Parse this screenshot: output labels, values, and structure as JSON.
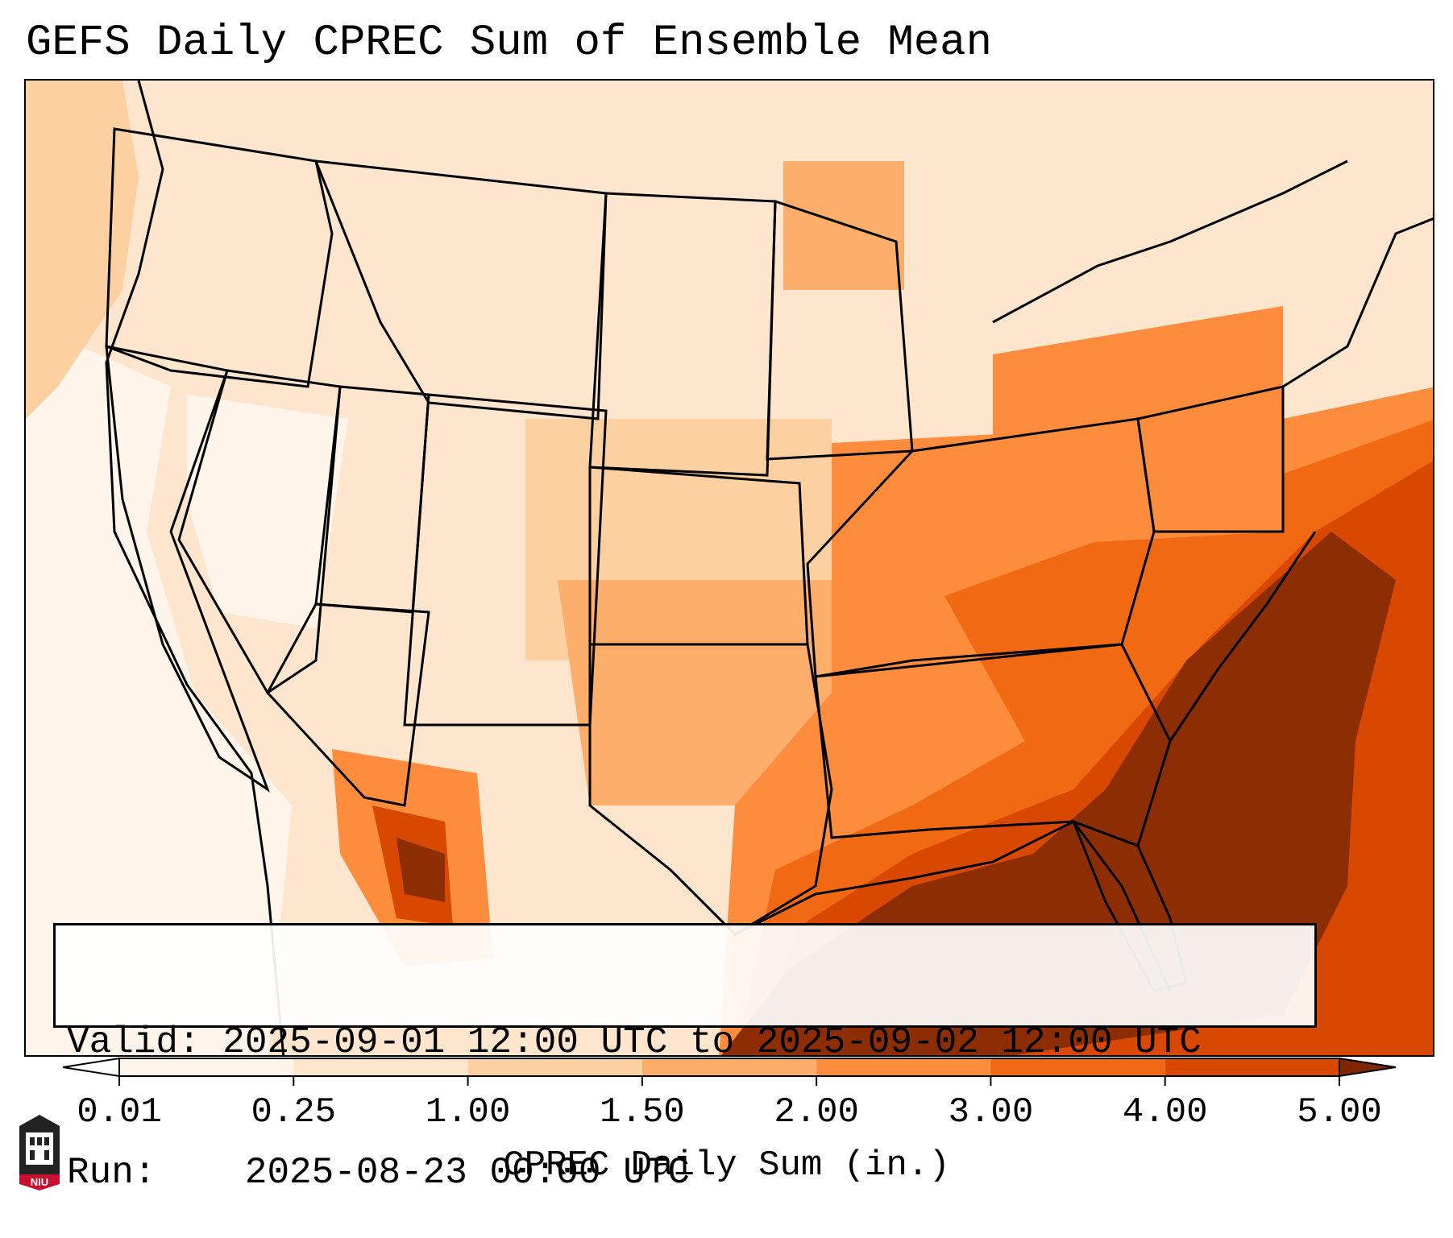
{
  "title": "GEFS Daily CPREC Sum of Ensemble Mean",
  "info": {
    "valid_label": "Valid:",
    "valid_value": "2025-09-01 12:00 UTC to 2025-09-02 12:00 UTC",
    "run_label": "Run:",
    "run_value": "2025-08-23 00:00 UTC"
  },
  "colorbar": {
    "ticks": [
      "0.01",
      "0.25",
      "1.00",
      "1.50",
      "2.00",
      "3.00",
      "4.00",
      "5.00"
    ],
    "label": "CPREC Daily Sum (in.)",
    "colors": [
      "#fff5eb",
      "#fee6ce",
      "#fdd0a2",
      "#fdae6b",
      "#fd8d3c",
      "#f16913",
      "#d94801",
      "#8c2d04"
    ],
    "under_color": "#ffffff",
    "over_color": "#7f2704"
  },
  "logo": {
    "text": "NIU",
    "icon": "niu-logo-icon"
  },
  "map": {
    "projection": "Lambert conformal, CONUS",
    "icons": [
      "state-boundaries",
      "coastlines"
    ]
  }
}
